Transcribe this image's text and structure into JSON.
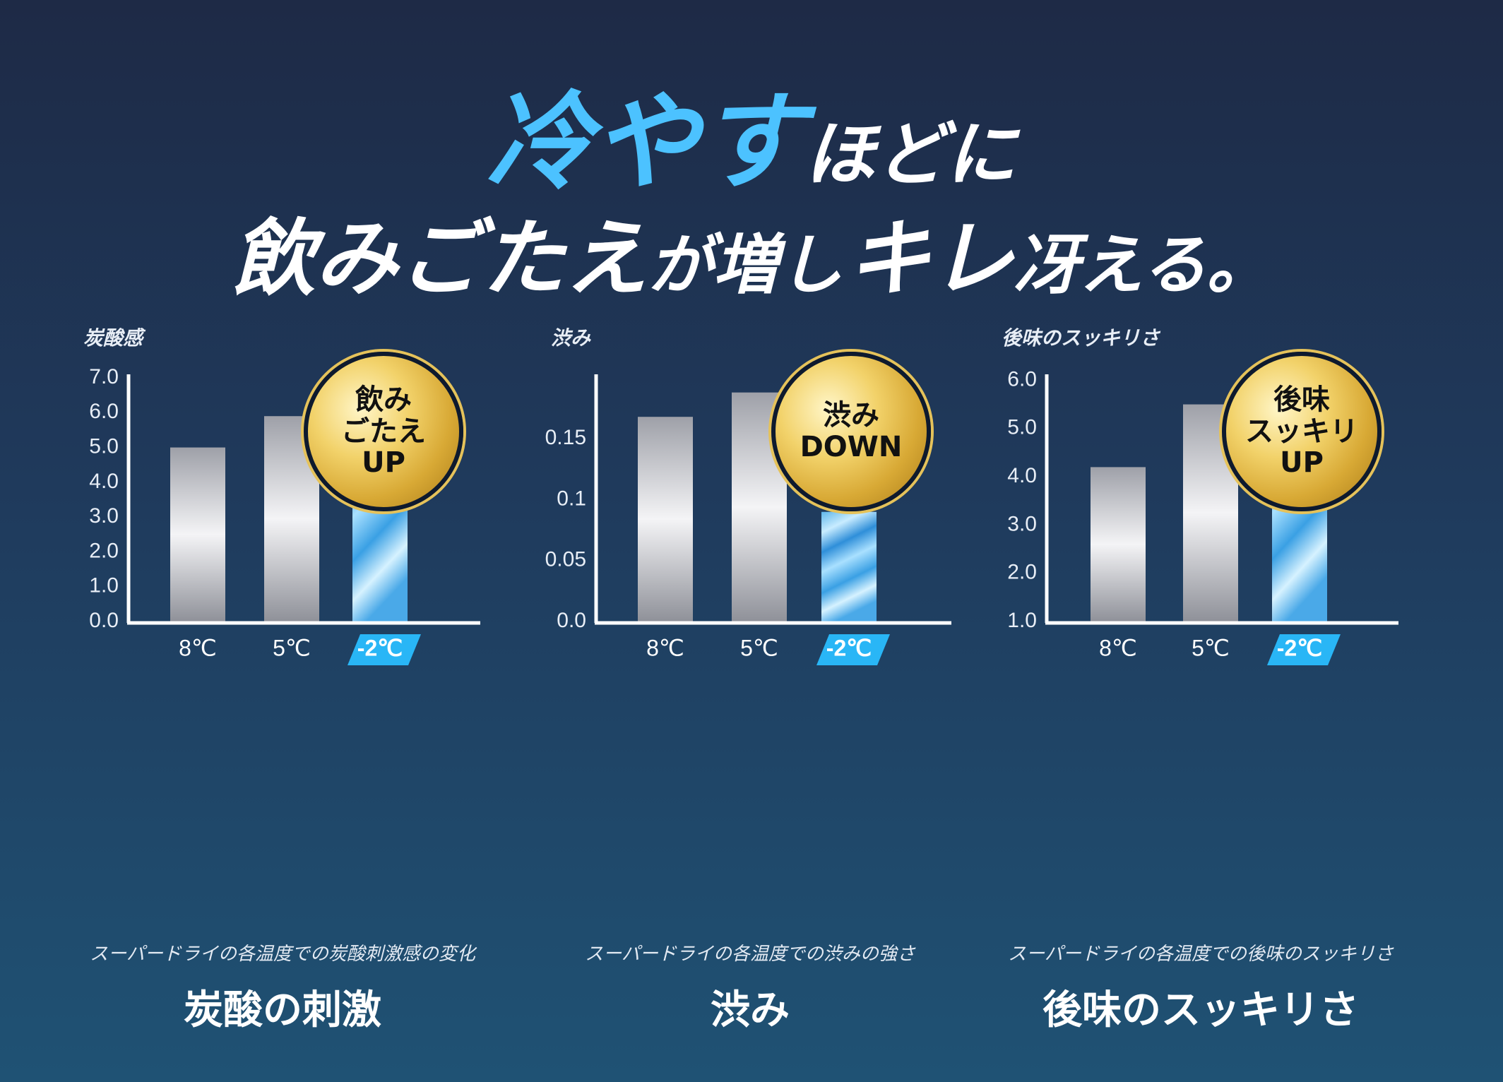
{
  "headline": {
    "line1_blue": "冷やす",
    "line1_white": "ほどに",
    "line2_a": "飲みごたえ",
    "line2_b": "が増し",
    "line2_c": "キレ",
    "line2_d": "冴える。"
  },
  "colors": {
    "accent_blue": "#4cc2ff",
    "highlight_tag": "#29b6f6",
    "bar_silver": "#d8d8dc",
    "badge_gold": "#e5c25a"
  },
  "panels": [
    {
      "badge": [
        "飲み",
        "ごたえ",
        "UP"
      ],
      "subtitle": "スーパードライの各温度での炭酸刺激感の変化",
      "title": "炭酸の刺激"
    },
    {
      "badge": [
        "渋み",
        "DOWN"
      ],
      "subtitle": "スーパードライの各温度での渋みの強さ",
      "title": "渋み"
    },
    {
      "badge": [
        "後味",
        "スッキリ",
        "UP"
      ],
      "subtitle": "スーパードライの各温度での後味のスッキリさ",
      "title": "後味のスッキリさ"
    }
  ],
  "chart_data": [
    {
      "type": "bar",
      "ylabel": "炭酸感",
      "categories": [
        "8℃",
        "5℃",
        "-2℃"
      ],
      "values": [
        5.0,
        5.9,
        6.7
      ],
      "highlight_index": 2,
      "ylim": [
        0,
        7
      ],
      "yticks": [
        "0.0",
        "1.0",
        "2.0",
        "3.0",
        "4.0",
        "5.0",
        "6.0",
        "7.0"
      ],
      "ytick_values": [
        0,
        1,
        2,
        3,
        4,
        5,
        6,
        7
      ],
      "grid": false
    },
    {
      "type": "bar",
      "ylabel": "渋み",
      "categories": [
        "8℃",
        "5℃",
        "-2℃"
      ],
      "values": [
        0.168,
        0.188,
        0.09
      ],
      "highlight_index": 2,
      "ylim": [
        0,
        0.2
      ],
      "yticks": [
        "0.0",
        "0.05",
        "0.1",
        "0.15"
      ],
      "ytick_values": [
        0,
        0.05,
        0.1,
        0.15
      ],
      "grid": false
    },
    {
      "type": "bar",
      "ylabel": "後味のスッキリさ",
      "categories": [
        "8℃",
        "5℃",
        "-2℃"
      ],
      "values": [
        4.2,
        5.5,
        6.0
      ],
      "highlight_index": 2,
      "ylim": [
        1,
        6.05
      ],
      "yticks": [
        "1.0",
        "2.0",
        "3.0",
        "4.0",
        "5.0",
        "6.0"
      ],
      "ytick_values": [
        1,
        2,
        3,
        4,
        5,
        6
      ],
      "grid": false
    }
  ]
}
